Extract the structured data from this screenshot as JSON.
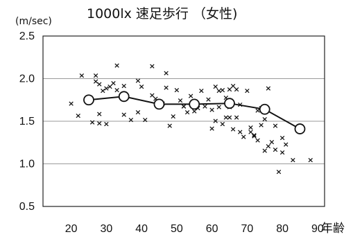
{
  "chart_data": {
    "type": "scatter",
    "title": "1000lx 速足歩行 （女性)",
    "ylabel": "(m/sec)",
    "xlabel": "年齢",
    "ylim": [
      0.5,
      2.5
    ],
    "xlim": [
      12,
      92
    ],
    "y_ticks": [
      "0.5",
      "1.0",
      "1.5",
      "2.0",
      "2.5"
    ],
    "x_ticks": [
      "20",
      "30",
      "40",
      "50",
      "60",
      "70",
      "80",
      "90"
    ],
    "grid": true,
    "series": [
      {
        "marker": "x",
        "x": [
          20,
          22,
          23,
          26,
          27,
          27,
          28,
          28,
          28,
          29,
          30,
          30,
          31,
          32,
          33,
          33,
          35,
          35,
          35,
          37,
          39,
          39,
          40,
          41,
          43,
          43,
          44,
          46,
          47,
          47,
          48,
          49,
          50,
          51,
          52,
          52,
          53,
          54,
          55,
          56,
          57,
          58,
          59,
          60,
          60,
          61,
          61,
          62,
          62,
          63,
          63,
          64,
          64,
          65,
          65,
          65,
          66,
          66,
          67,
          67,
          68,
          68,
          69,
          70,
          71,
          71,
          72,
          72,
          73,
          73,
          74,
          74,
          75,
          75,
          76,
          76,
          77,
          78,
          78,
          79,
          80,
          80,
          81,
          83,
          88
        ],
        "y": [
          1.71,
          1.57,
          2.04,
          1.49,
          2.04,
          1.97,
          1.94,
          1.59,
          1.48,
          1.86,
          1.89,
          1.47,
          1.91,
          1.95,
          1.87,
          2.16,
          1.92,
          1.83,
          1.58,
          1.52,
          1.98,
          1.61,
          1.91,
          1.52,
          1.81,
          2.15,
          1.77,
          1.71,
          1.9,
          2.07,
          1.45,
          1.56,
          1.87,
          1.75,
          1.68,
          1.68,
          1.61,
          1.8,
          1.62,
          1.66,
          1.86,
          1.68,
          1.76,
          1.42,
          1.64,
          1.91,
          1.51,
          1.86,
          1.67,
          1.87,
          1.47,
          1.78,
          1.55,
          1.88,
          1.67,
          1.55,
          1.41,
          1.92,
          1.88,
          1.55,
          1.7,
          1.38,
          1.32,
          1.86,
          1.38,
          1.43,
          1.34,
          1.33,
          1.63,
          1.28,
          1.66,
          1.46,
          1.53,
          1.16,
          1.89,
          1.21,
          1.26,
          1.17,
          1.45,
          0.91,
          1.14,
          1.31,
          1.23,
          1.05,
          1.05
        ]
      },
      {
        "marker": "circle",
        "line": true,
        "x": [
          25,
          35,
          45,
          55,
          65,
          75,
          85
        ],
        "y": [
          1.75,
          1.79,
          1.7,
          1.7,
          1.71,
          1.64,
          1.41
        ]
      }
    ]
  }
}
